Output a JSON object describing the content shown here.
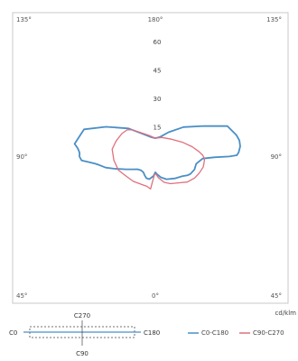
{
  "chart_data": {
    "type": "line",
    "chart_kind": "polar light distribution curve",
    "unit_label": "cd/klm",
    "radial_ticks": [
      "15",
      "30",
      "45",
      "60"
    ],
    "radial_tick_values": [
      15,
      30,
      45,
      60
    ],
    "radial_range": [
      0,
      68
    ],
    "angle_labels": {
      "top_left": "135°",
      "top_center": "180°",
      "top_right": "135°",
      "mid_left": "90°",
      "mid_right": "90°",
      "bottom_left": "45°",
      "bottom_center": "0°",
      "bottom_right": "45°"
    },
    "series": [
      {
        "name": "C0-C180",
        "color": "#4a8fc6",
        "points": [
          {
            "angle": -98,
            "value": 43
          },
          {
            "angle": -95,
            "value": 41
          },
          {
            "angle": -92,
            "value": 40
          },
          {
            "angle": -89,
            "value": 40
          },
          {
            "angle": -86,
            "value": 39
          },
          {
            "angle": -84,
            "value": 35
          },
          {
            "angle": -82,
            "value": 32
          },
          {
            "angle": -80,
            "value": 30
          },
          {
            "angle": -76,
            "value": 27
          },
          {
            "angle": -72,
            "value": 23
          },
          {
            "angle": -64,
            "value": 17
          },
          {
            "angle": -58,
            "value": 14
          },
          {
            "angle": -52,
            "value": 12
          },
          {
            "angle": -44,
            "value": 11
          },
          {
            "angle": -35,
            "value": 11
          },
          {
            "angle": -28,
            "value": 12
          },
          {
            "angle": -21,
            "value": 13
          },
          {
            "angle": -14,
            "value": 13
          },
          {
            "angle": -5,
            "value": 11
          },
          {
            "angle": 0,
            "value": 9
          },
          {
            "angle": 5,
            "value": 10
          },
          {
            "angle": 14,
            "value": 12
          },
          {
            "angle": 25,
            "value": 14
          },
          {
            "angle": 40,
            "value": 16
          },
          {
            "angle": 52,
            "value": 18
          },
          {
            "angle": 58,
            "value": 20
          },
          {
            "angle": 62,
            "value": 21
          },
          {
            "angle": 70,
            "value": 22
          },
          {
            "angle": 78,
            "value": 22
          },
          {
            "angle": 86,
            "value": 25
          },
          {
            "angle": 88,
            "value": 31
          },
          {
            "angle": 89,
            "value": 39
          },
          {
            "angle": 90,
            "value": 43
          },
          {
            "angle": 92,
            "value": 44
          },
          {
            "angle": 96,
            "value": 45
          },
          {
            "angle": 100,
            "value": 45
          },
          {
            "angle": 104,
            "value": 44
          },
          {
            "angle": 112,
            "value": 41
          },
          {
            "angle": 121,
            "value": 30
          },
          {
            "angle": 135,
            "value": 21
          },
          {
            "angle": 150,
            "value": 14
          },
          {
            "angle": 165,
            "value": 10
          },
          {
            "angle": 180,
            "value": 9
          },
          {
            "angle": 195,
            "value": 10
          },
          {
            "angle": 210,
            "value": 13
          },
          {
            "angle": 225,
            "value": 20
          },
          {
            "angle": 240,
            "value": 30
          },
          {
            "angle": 250,
            "value": 40
          },
          {
            "angle": 262,
            "value": 43
          }
        ]
      },
      {
        "name": "C90-C270",
        "color": "#e0707c",
        "points": [
          {
            "angle": -8,
            "value": 18
          },
          {
            "angle": -6,
            "value": 14
          },
          {
            "angle": -2,
            "value": 10
          },
          {
            "angle": 2,
            "value": 10
          },
          {
            "angle": 8,
            "value": 12
          },
          {
            "angle": 18,
            "value": 15
          },
          {
            "angle": 28,
            "value": 17
          },
          {
            "angle": 40,
            "value": 19
          },
          {
            "angle": 50,
            "value": 22
          },
          {
            "angle": 60,
            "value": 24
          },
          {
            "angle": 68,
            "value": 25
          },
          {
            "angle": 76,
            "value": 26
          },
          {
            "angle": 82,
            "value": 26
          },
          {
            "angle": 86,
            "value": 26
          },
          {
            "angle": 90,
            "value": 25
          },
          {
            "angle": 95,
            "value": 23
          },
          {
            "angle": 103,
            "value": 20
          },
          {
            "angle": 115,
            "value": 16
          },
          {
            "angle": 135,
            "value": 12
          },
          {
            "angle": 160,
            "value": 10
          },
          {
            "angle": 180,
            "value": 9
          },
          {
            "angle": 198,
            "value": 11
          },
          {
            "angle": 212,
            "value": 14
          },
          {
            "angle": 222,
            "value": 18
          },
          {
            "angle": 228,
            "value": 20
          },
          {
            "angle": 237,
            "value": 21
          },
          {
            "angle": 250,
            "value": 22
          },
          {
            "angle": 262,
            "value": 23
          },
          {
            "angle": 277,
            "value": 22
          },
          {
            "angle": 292,
            "value": 21
          },
          {
            "angle": 305,
            "value": 19
          },
          {
            "angle": 320,
            "value": 18
          },
          {
            "angle": 335,
            "value": 17
          },
          {
            "angle": 345,
            "value": 17
          },
          {
            "angle": 352,
            "value": 18
          }
        ]
      }
    ],
    "legend": {
      "placement": "bottom",
      "items": [
        {
          "label": "C0-C180",
          "color": "#4a8fc6"
        },
        {
          "label": "C90-C270",
          "color": "#e0707c"
        }
      ]
    },
    "orientation_diagram": {
      "left_label": "C0",
      "right_label": "C180",
      "top_label": "C270",
      "bottom_label": "C90"
    }
  }
}
